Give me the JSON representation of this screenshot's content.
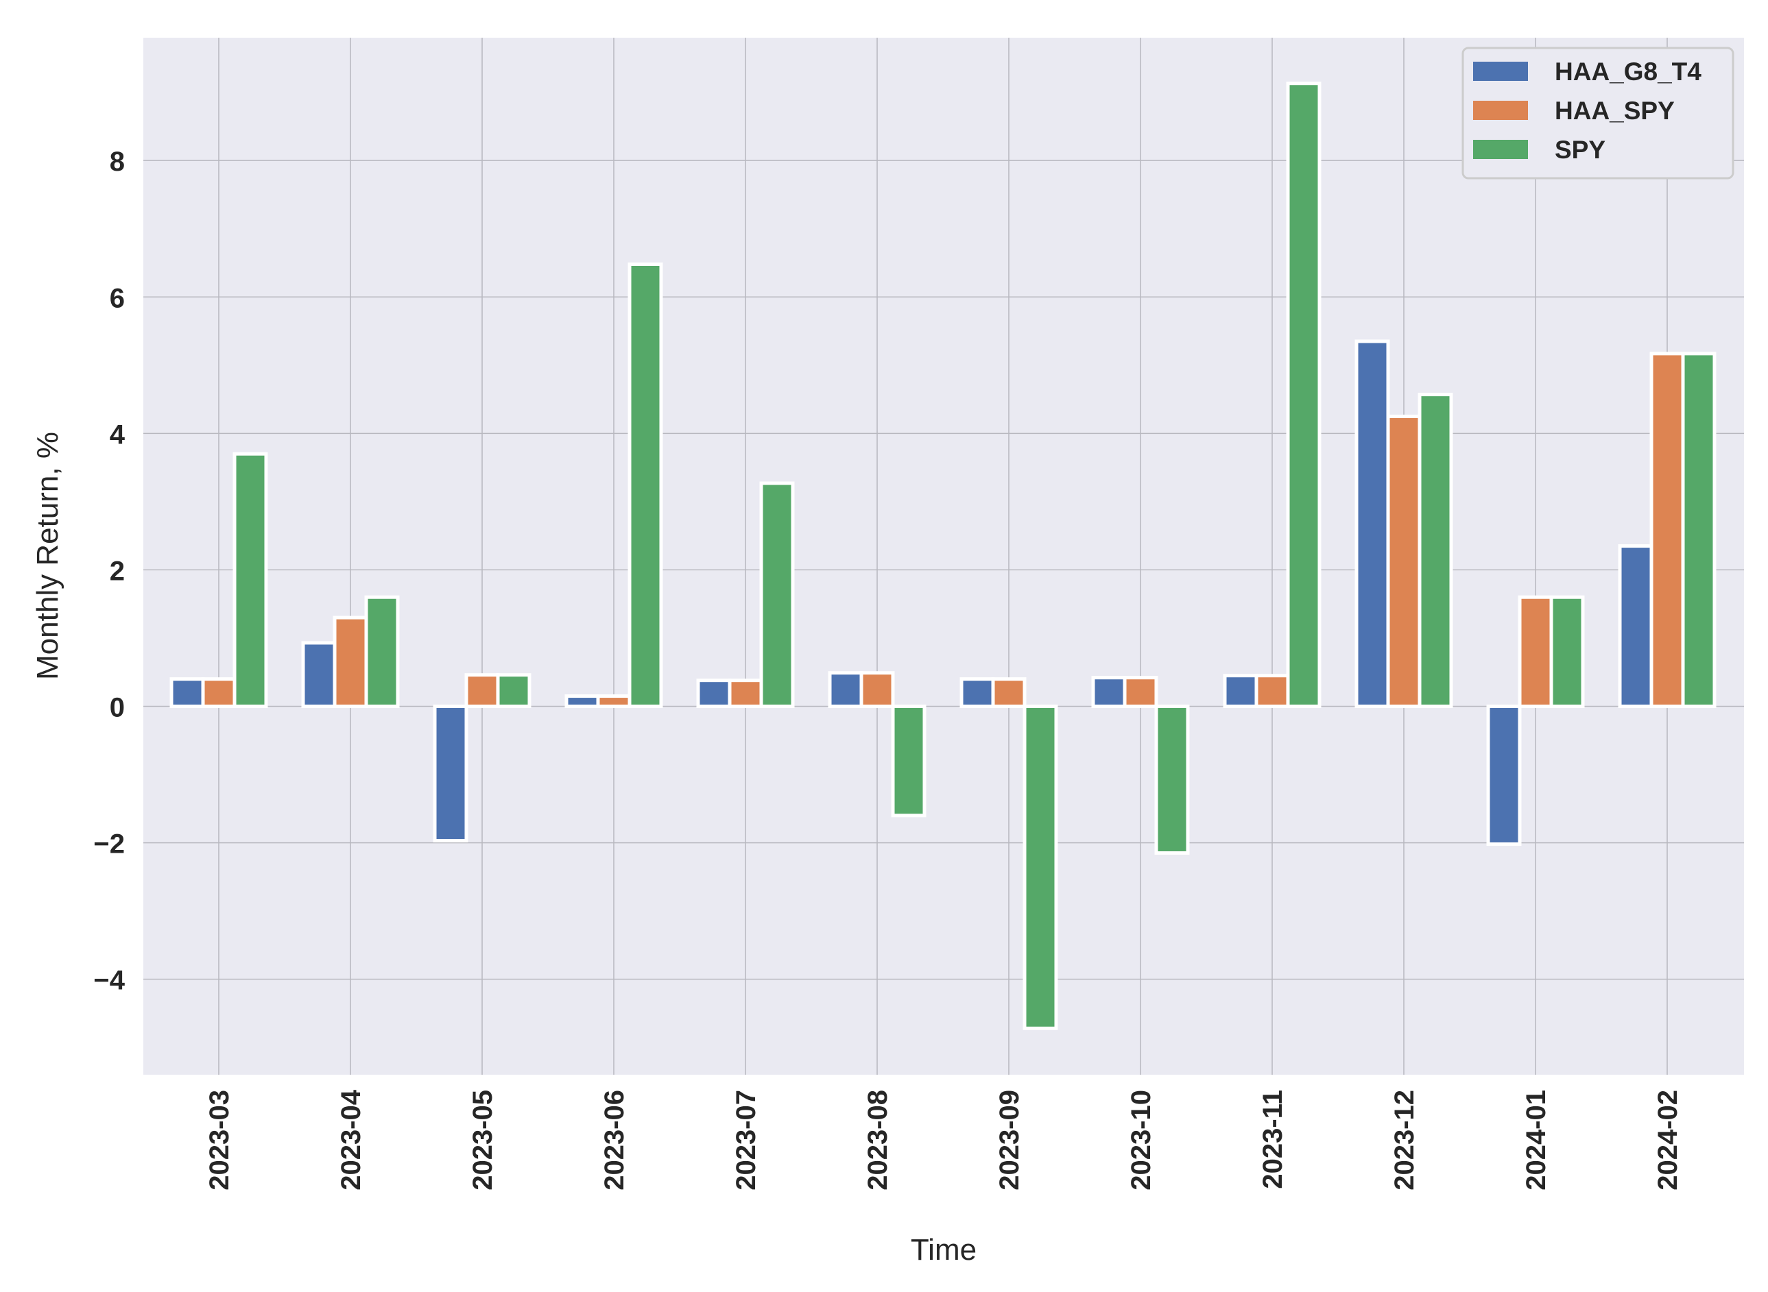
{
  "chart_data": {
    "type": "bar",
    "xlabel": "Time",
    "ylabel": "Monthly Return, %",
    "categories": [
      "2023-03",
      "2023-04",
      "2023-05",
      "2023-06",
      "2023-07",
      "2023-08",
      "2023-09",
      "2023-10",
      "2023-11",
      "2023-12",
      "2024-01",
      "2024-02"
    ],
    "series": [
      {
        "name": "HAA_G8_T4",
        "color": "#4c72b0",
        "values": [
          0.4,
          0.93,
          -1.97,
          0.15,
          0.38,
          0.49,
          0.4,
          0.42,
          0.45,
          5.35,
          -2.02,
          2.35
        ]
      },
      {
        "name": "HAA_SPY",
        "color": "#dd8452",
        "values": [
          0.4,
          1.3,
          0.46,
          0.15,
          0.38,
          0.49,
          0.4,
          0.42,
          0.45,
          4.25,
          1.6,
          5.17
        ]
      },
      {
        "name": "SPY",
        "color": "#55a868",
        "values": [
          3.7,
          1.6,
          0.46,
          6.48,
          3.27,
          -1.6,
          -4.72,
          -2.15,
          9.13,
          4.57,
          1.6,
          5.17
        ]
      }
    ],
    "ylim": [
      -5.4,
      9.8
    ],
    "yticks": [
      -4,
      -2,
      0,
      2,
      4,
      6,
      8
    ],
    "ytick_labels": [
      "−4",
      "−2",
      "0",
      "2",
      "4",
      "6",
      "8"
    ],
    "grid": true,
    "legend_position": "top-right",
    "background": "#eaeaf2",
    "grid_color": "#b8b8bf"
  }
}
